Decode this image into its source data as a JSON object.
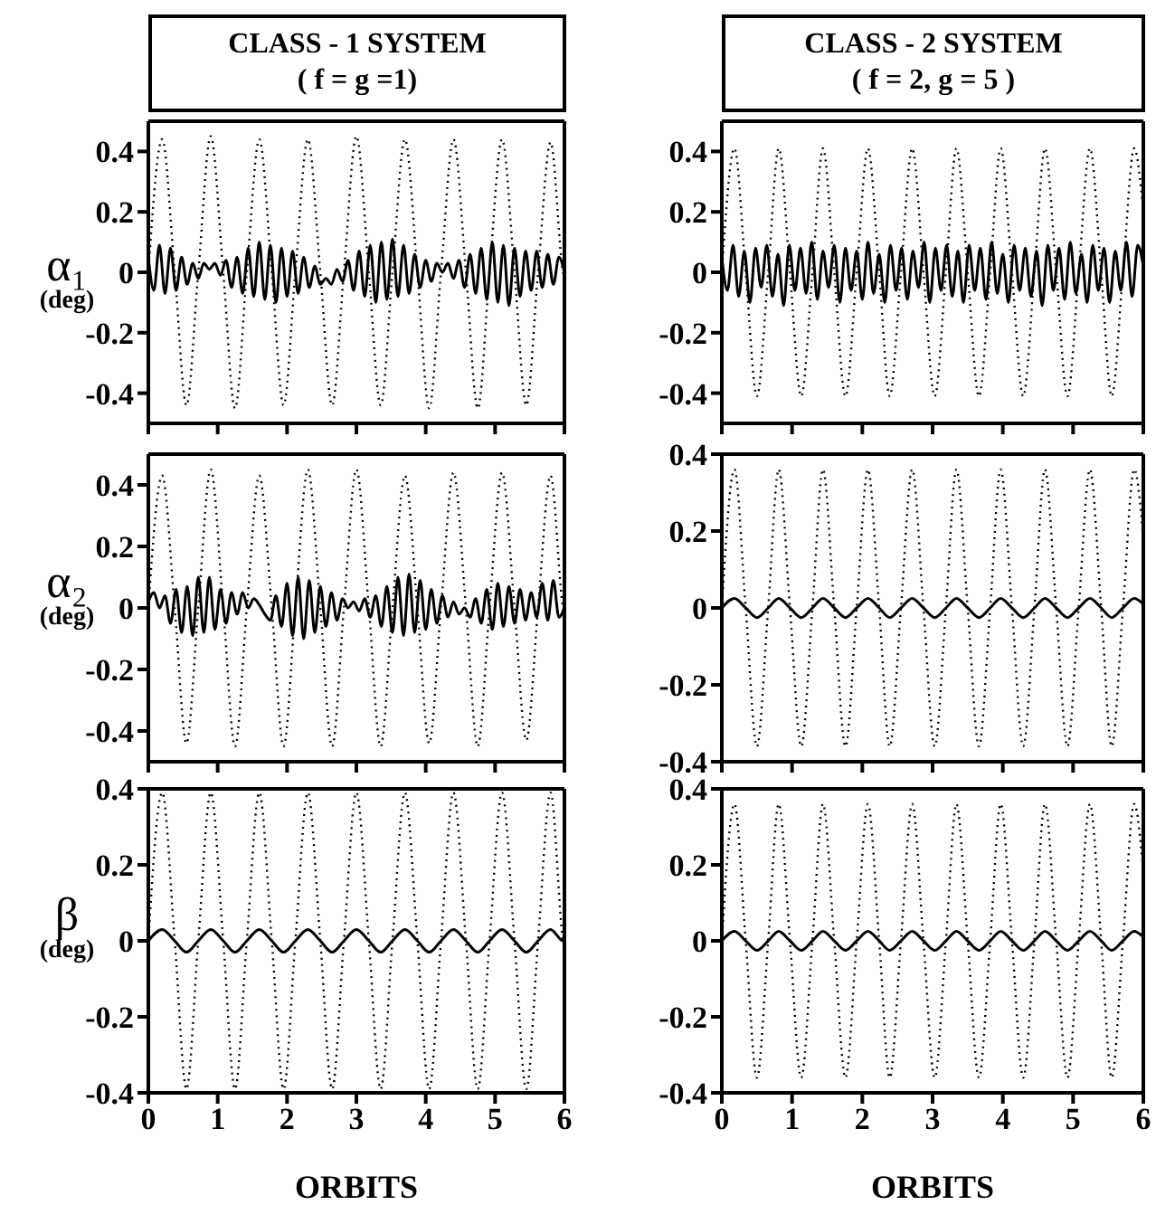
{
  "chart_data": [
    {
      "type": "line",
      "title": "CLASS - 1 SYSTEM",
      "subtitle": "( f = g =1)",
      "ylabel": "α₁ (deg)",
      "xlim": [
        0,
        6
      ],
      "xticks": [
        0,
        1,
        2,
        3,
        4,
        5,
        6
      ],
      "ylim": [
        -0.5,
        0.5
      ],
      "yticks": [
        -0.4,
        -0.2,
        0,
        0.2,
        0.4
      ],
      "tick_labels": "y",
      "series": [
        {
          "color": "#000000",
          "line_style": "dotted",
          "x": [
            0,
            0.2,
            0.38,
            0.55,
            0.72,
            0.9,
            1.08,
            1.25,
            1.42,
            1.6,
            1.78,
            1.95,
            2.12,
            2.3,
            2.48,
            2.65,
            2.82,
            3.0,
            3.18,
            3.35,
            3.52,
            3.7,
            3.88,
            4.05,
            4.22,
            4.4,
            4.58,
            4.75,
            4.92,
            5.1,
            5.28,
            5.45,
            5.62,
            5.8,
            5.98,
            6
          ],
          "values": [
            0,
            0.44,
            0,
            -0.44,
            0,
            0.45,
            0,
            -0.45,
            0,
            0.44,
            0,
            -0.44,
            0,
            0.44,
            0,
            -0.44,
            0,
            0.45,
            0,
            -0.44,
            0,
            0.44,
            0,
            -0.45,
            0,
            0.44,
            0,
            -0.45,
            0,
            0.44,
            0,
            -0.44,
            0,
            0.43,
            0,
            -0.02
          ]
        },
        {
          "color": "#000000",
          "line_style": "solid",
          "x": [
            0,
            0.08,
            0.16,
            0.24,
            0.32,
            0.4,
            0.48,
            0.56,
            0.64,
            0.72,
            0.8,
            0.88,
            0.96,
            1.04,
            1.12,
            1.2,
            1.28,
            1.36,
            1.44,
            1.52,
            1.6,
            1.68,
            1.76,
            1.84,
            1.92,
            2,
            2.08,
            2.16,
            2.24,
            2.32,
            2.4,
            2.48,
            2.56,
            2.64,
            2.72,
            2.8,
            2.88,
            2.96,
            3.04,
            3.12,
            3.2,
            3.28,
            3.36,
            3.44,
            3.52,
            3.6,
            3.68,
            3.76,
            3.84,
            3.92,
            4,
            4.08,
            4.16,
            4.24,
            4.32,
            4.4,
            4.48,
            4.56,
            4.64,
            4.72,
            4.8,
            4.88,
            4.96,
            5.04,
            5.12,
            5.2,
            5.28,
            5.36,
            5.44,
            5.52,
            5.6,
            5.68,
            5.76,
            5.84,
            5.92,
            6
          ],
          "values": [
            0.05,
            -0.06,
            0.09,
            -0.07,
            0.08,
            -0.06,
            0.05,
            -0.04,
            0.03,
            -0.02,
            0.03,
            0.01,
            0.03,
            -0.01,
            0.04,
            -0.05,
            0.05,
            -0.07,
            0.08,
            -0.08,
            0.1,
            -0.09,
            0.09,
            -0.1,
            0.08,
            -0.08,
            0.07,
            -0.07,
            0.05,
            -0.05,
            0.02,
            -0.04,
            -0.02,
            -0.04,
            0.01,
            -0.03,
            0.04,
            -0.06,
            0.07,
            -0.08,
            0.09,
            -0.1,
            0.1,
            -0.09,
            0.11,
            -0.08,
            0.09,
            -0.07,
            0.06,
            -0.05,
            0.04,
            -0.03,
            0.03,
            0,
            0.03,
            -0.02,
            0.04,
            -0.05,
            0.06,
            -0.07,
            0.08,
            -0.09,
            0.1,
            -0.1,
            0.09,
            -0.11,
            0.08,
            -0.08,
            0.07,
            -0.06,
            0.07,
            -0.05,
            0.06,
            -0.04,
            0.05,
            0
          ]
        }
      ]
    },
    {
      "type": "line",
      "title": "CLASS - 2 SYSTEM",
      "subtitle": "( f = 2, g = 5 )",
      "xlim": [
        0,
        6
      ],
      "xticks": [
        0,
        1,
        2,
        3,
        4,
        5,
        6
      ],
      "ylim": [
        -0.5,
        0.5
      ],
      "yticks": [
        -0.4,
        -0.2,
        0,
        0.2,
        0.4
      ],
      "tick_labels": "y",
      "series": [
        {
          "color": "#000000",
          "line_style": "dotted",
          "x": [
            0,
            0.18,
            0.34,
            0.5,
            0.66,
            0.81,
            0.97,
            1.13,
            1.29,
            1.44,
            1.6,
            1.76,
            1.92,
            2.08,
            2.24,
            2.39,
            2.55,
            2.71,
            2.87,
            3.03,
            3.19,
            3.34,
            3.5,
            3.66,
            3.82,
            3.97,
            4.13,
            4.29,
            4.45,
            4.6,
            4.76,
            4.92,
            5.08,
            5.24,
            5.4,
            5.55,
            5.71,
            5.87,
            6
          ],
          "values": [
            0,
            0.41,
            0,
            -0.41,
            0,
            0.41,
            0,
            -0.41,
            0,
            0.41,
            0,
            -0.41,
            0,
            0.41,
            0,
            -0.41,
            0,
            0.41,
            0,
            -0.41,
            0,
            0.41,
            0,
            -0.41,
            0,
            0.41,
            0,
            -0.41,
            0,
            0.41,
            0,
            -0.41,
            0,
            0.41,
            0,
            -0.41,
            0,
            0.41,
            0.2
          ]
        },
        {
          "color": "#000000",
          "line_style": "solid",
          "x": [
            0,
            0.08,
            0.16,
            0.24,
            0.32,
            0.4,
            0.48,
            0.56,
            0.64,
            0.72,
            0.8,
            0.88,
            0.96,
            1.04,
            1.12,
            1.2,
            1.28,
            1.36,
            1.44,
            1.52,
            1.6,
            1.68,
            1.76,
            1.84,
            1.92,
            2,
            2.08,
            2.16,
            2.24,
            2.32,
            2.4,
            2.48,
            2.56,
            2.64,
            2.72,
            2.8,
            2.88,
            2.96,
            3.04,
            3.12,
            3.2,
            3.28,
            3.36,
            3.44,
            3.52,
            3.6,
            3.68,
            3.76,
            3.84,
            3.92,
            4,
            4.08,
            4.16,
            4.24,
            4.32,
            4.4,
            4.48,
            4.56,
            4.64,
            4.72,
            4.8,
            4.88,
            4.96,
            5.04,
            5.12,
            5.2,
            5.28,
            5.36,
            5.44,
            5.52,
            5.6,
            5.68,
            5.76,
            5.84,
            5.92,
            6
          ],
          "values": [
            0.05,
            -0.06,
            0.09,
            -0.08,
            0.07,
            -0.1,
            0.08,
            -0.05,
            0.09,
            -0.08,
            0.06,
            -0.11,
            0.09,
            -0.06,
            0.08,
            -0.07,
            0.1,
            -0.09,
            0.07,
            -0.05,
            0.09,
            -0.1,
            0.08,
            -0.06,
            0.07,
            -0.09,
            0.1,
            -0.07,
            0.06,
            -0.1,
            0.09,
            -0.06,
            0.08,
            -0.09,
            0.07,
            -0.05,
            0.1,
            -0.1,
            0.08,
            -0.06,
            0.09,
            -0.08,
            0.07,
            -0.1,
            0.09,
            -0.06,
            0.08,
            -0.09,
            0.1,
            -0.07,
            0.06,
            -0.1,
            0.09,
            -0.06,
            0.08,
            -0.08,
            0.07,
            -0.11,
            0.09,
            -0.06,
            0.08,
            -0.09,
            0.1,
            -0.07,
            0.06,
            -0.1,
            0.09,
            -0.06,
            0.08,
            -0.1,
            0.07,
            -0.06,
            0.1,
            -0.08,
            0.09,
            0.02
          ]
        }
      ]
    },
    {
      "type": "line",
      "ylabel": "α₂ (deg)",
      "xlim": [
        0,
        6
      ],
      "xticks": [
        0,
        1,
        2,
        3,
        4,
        5,
        6
      ],
      "ylim": [
        -0.5,
        0.5
      ],
      "yticks": [
        -0.4,
        -0.2,
        0,
        0.2,
        0.4
      ],
      "tick_labels": "y",
      "series": [
        {
          "color": "#000000",
          "line_style": "dotted",
          "x": [
            0,
            0.2,
            0.38,
            0.55,
            0.72,
            0.9,
            1.08,
            1.25,
            1.42,
            1.6,
            1.78,
            1.95,
            2.12,
            2.3,
            2.48,
            2.65,
            2.82,
            3.0,
            3.18,
            3.35,
            3.52,
            3.7,
            3.88,
            4.05,
            4.22,
            4.4,
            4.58,
            4.75,
            4.92,
            5.1,
            5.28,
            5.45,
            5.62,
            5.8,
            5.98,
            6
          ],
          "values": [
            0,
            0.43,
            0,
            -0.44,
            0,
            0.45,
            0,
            -0.45,
            0,
            0.43,
            0,
            -0.45,
            0,
            0.45,
            0,
            -0.45,
            0,
            0.45,
            0,
            -0.45,
            0,
            0.43,
            0,
            -0.44,
            0,
            0.44,
            0,
            -0.45,
            0,
            0.44,
            0,
            -0.43,
            0,
            0.43,
            0,
            -0.02
          ]
        },
        {
          "color": "#000000",
          "line_style": "solid",
          "x": [
            0,
            0.08,
            0.16,
            0.24,
            0.32,
            0.4,
            0.48,
            0.56,
            0.64,
            0.72,
            0.8,
            0.88,
            0.96,
            1.04,
            1.12,
            1.2,
            1.28,
            1.36,
            1.44,
            1.52,
            1.6,
            1.68,
            1.76,
            1.84,
            1.92,
            2,
            2.08,
            2.16,
            2.24,
            2.32,
            2.4,
            2.48,
            2.56,
            2.64,
            2.72,
            2.8,
            2.88,
            2.96,
            3.04,
            3.12,
            3.2,
            3.28,
            3.36,
            3.44,
            3.52,
            3.6,
            3.68,
            3.76,
            3.84,
            3.92,
            4,
            4.08,
            4.16,
            4.24,
            4.32,
            4.4,
            4.48,
            4.56,
            4.64,
            4.72,
            4.8,
            4.88,
            4.96,
            5.04,
            5.12,
            5.2,
            5.28,
            5.36,
            5.44,
            5.52,
            5.6,
            5.68,
            5.76,
            5.84,
            5.92,
            6
          ],
          "values": [
            0.02,
            0.05,
            0,
            0.04,
            -0.05,
            0.06,
            -0.08,
            0.07,
            -0.09,
            0.1,
            -0.08,
            0.1,
            -0.07,
            0.06,
            -0.05,
            0.05,
            -0.02,
            0.05,
            0,
            0.03,
            0.01,
            -0.02,
            -0.04,
            0.04,
            -0.06,
            0.08,
            -0.09,
            0.1,
            -0.1,
            0.09,
            -0.08,
            0.07,
            -0.06,
            0.05,
            -0.04,
            0.03,
            0,
            0.02,
            -0.01,
            0.03,
            -0.03,
            0.04,
            -0.06,
            0.07,
            -0.08,
            0.1,
            -0.09,
            0.11,
            -0.08,
            0.09,
            -0.07,
            0.06,
            -0.05,
            0.04,
            -0.03,
            0.02,
            -0.02,
            0,
            -0.03,
            0.03,
            -0.05,
            0.06,
            -0.07,
            0.08,
            -0.06,
            0.07,
            -0.05,
            0.06,
            -0.04,
            0.05,
            -0.03,
            0.08,
            -0.04,
            0.09,
            -0.03,
            0
          ]
        }
      ]
    },
    {
      "type": "line",
      "xlim": [
        0,
        6
      ],
      "xticks": [
        0,
        1,
        2,
        3,
        4,
        5,
        6
      ],
      "ylim": [
        -0.4,
        0.4
      ],
      "yticks": [
        -0.4,
        -0.2,
        0,
        0.2,
        0.4
      ],
      "tick_labels": "y",
      "series": [
        {
          "color": "#000000",
          "line_style": "dotted",
          "x": [
            0,
            0.18,
            0.34,
            0.5,
            0.66,
            0.81,
            0.97,
            1.13,
            1.29,
            1.44,
            1.6,
            1.76,
            1.92,
            2.08,
            2.24,
            2.39,
            2.55,
            2.71,
            2.87,
            3.03,
            3.19,
            3.34,
            3.5,
            3.66,
            3.82,
            3.97,
            4.13,
            4.29,
            4.45,
            4.6,
            4.76,
            4.92,
            5.08,
            5.24,
            5.4,
            5.55,
            5.71,
            5.87,
            6
          ],
          "values": [
            0,
            0.36,
            0,
            -0.36,
            0,
            0.36,
            0,
            -0.36,
            0,
            0.36,
            0,
            -0.36,
            0,
            0.36,
            0,
            -0.36,
            0,
            0.36,
            0,
            -0.36,
            0,
            0.36,
            0,
            -0.36,
            0,
            0.36,
            0,
            -0.36,
            0,
            0.36,
            0,
            -0.36,
            0,
            0.36,
            0,
            -0.36,
            0,
            0.36,
            0.18
          ]
        },
        {
          "color": "#000000",
          "line_style": "solid",
          "x": [
            0,
            0.18,
            0.34,
            0.5,
            0.66,
            0.81,
            0.97,
            1.13,
            1.29,
            1.44,
            1.6,
            1.76,
            1.92,
            2.08,
            2.24,
            2.39,
            2.55,
            2.71,
            2.87,
            3.03,
            3.19,
            3.34,
            3.5,
            3.66,
            3.82,
            3.97,
            4.13,
            4.29,
            4.45,
            4.6,
            4.76,
            4.92,
            5.08,
            5.24,
            5.4,
            5.55,
            5.71,
            5.87,
            6
          ],
          "values": [
            0,
            0.025,
            0,
            -0.025,
            0,
            0.025,
            0,
            -0.025,
            0,
            0.025,
            0,
            -0.025,
            0,
            0.025,
            0,
            -0.025,
            0,
            0.025,
            0,
            -0.025,
            0,
            0.025,
            0,
            -0.025,
            0,
            0.025,
            0,
            -0.025,
            0,
            0.025,
            0,
            -0.025,
            0,
            0.025,
            0,
            -0.025,
            0,
            0.025,
            0.01
          ]
        }
      ]
    },
    {
      "type": "line",
      "ylabel": "β (deg)",
      "xlabel": "ORBITS",
      "xlim": [
        0,
        6
      ],
      "xticks": [
        0,
        1,
        2,
        3,
        4,
        5,
        6
      ],
      "ylim": [
        -0.4,
        0.4
      ],
      "yticks": [
        -0.4,
        -0.2,
        0,
        0.2,
        0.4
      ],
      "series": [
        {
          "color": "#000000",
          "line_style": "dotted",
          "x": [
            0,
            0.2,
            0.38,
            0.55,
            0.72,
            0.9,
            1.08,
            1.25,
            1.42,
            1.6,
            1.78,
            1.95,
            2.12,
            2.3,
            2.48,
            2.65,
            2.82,
            3.0,
            3.18,
            3.35,
            3.52,
            3.7,
            3.88,
            4.05,
            4.22,
            4.4,
            4.58,
            4.75,
            4.92,
            5.1,
            5.28,
            5.45,
            5.62,
            5.8,
            5.98,
            6
          ],
          "values": [
            0,
            0.39,
            0,
            -0.39,
            0,
            0.39,
            0,
            -0.39,
            0,
            0.39,
            0,
            -0.39,
            0,
            0.39,
            0,
            -0.39,
            0,
            0.39,
            0,
            -0.39,
            0,
            0.39,
            0,
            -0.39,
            0,
            0.39,
            0,
            -0.39,
            0,
            0.39,
            0,
            -0.39,
            0,
            0.39,
            0,
            -0.02
          ]
        },
        {
          "color": "#000000",
          "line_style": "solid",
          "x": [
            0,
            0.2,
            0.38,
            0.55,
            0.72,
            0.9,
            1.08,
            1.25,
            1.42,
            1.6,
            1.78,
            1.95,
            2.12,
            2.3,
            2.48,
            2.65,
            2.82,
            3.0,
            3.18,
            3.35,
            3.52,
            3.7,
            3.88,
            4.05,
            4.22,
            4.4,
            4.58,
            4.75,
            4.92,
            5.1,
            5.28,
            5.45,
            5.62,
            5.8,
            5.98,
            6
          ],
          "values": [
            0,
            0.03,
            0,
            -0.03,
            0,
            0.03,
            0,
            -0.03,
            0,
            0.03,
            0,
            -0.03,
            0,
            0.03,
            0,
            -0.03,
            0,
            0.03,
            0,
            -0.03,
            0,
            0.03,
            0,
            -0.03,
            0,
            0.03,
            0,
            -0.03,
            0,
            0.03,
            0,
            -0.03,
            0,
            0.03,
            0,
            0
          ]
        }
      ]
    },
    {
      "type": "line",
      "xlabel": "ORBITS",
      "xlim": [
        0,
        6
      ],
      "xticks": [
        0,
        1,
        2,
        3,
        4,
        5,
        6
      ],
      "ylim": [
        -0.4,
        0.4
      ],
      "yticks": [
        -0.4,
        -0.2,
        0,
        0.2,
        0.4
      ],
      "series": [
        {
          "color": "#000000",
          "line_style": "dotted",
          "x": [
            0,
            0.18,
            0.34,
            0.5,
            0.66,
            0.81,
            0.97,
            1.13,
            1.29,
            1.44,
            1.6,
            1.76,
            1.92,
            2.08,
            2.24,
            2.39,
            2.55,
            2.71,
            2.87,
            3.03,
            3.19,
            3.34,
            3.5,
            3.66,
            3.82,
            3.97,
            4.13,
            4.29,
            4.45,
            4.6,
            4.76,
            4.92,
            5.08,
            5.24,
            5.4,
            5.55,
            5.71,
            5.87,
            6
          ],
          "values": [
            0,
            0.36,
            0,
            -0.36,
            0,
            0.36,
            0,
            -0.36,
            0,
            0.36,
            0,
            -0.36,
            0,
            0.36,
            0,
            -0.36,
            0,
            0.36,
            0,
            -0.36,
            0,
            0.36,
            0,
            -0.36,
            0,
            0.36,
            0,
            -0.36,
            0,
            0.36,
            0,
            -0.36,
            0,
            0.36,
            0,
            -0.36,
            0,
            0.36,
            0.18
          ]
        },
        {
          "color": "#000000",
          "line_style": "solid",
          "x": [
            0,
            0.18,
            0.34,
            0.5,
            0.66,
            0.81,
            0.97,
            1.13,
            1.29,
            1.44,
            1.6,
            1.76,
            1.92,
            2.08,
            2.24,
            2.39,
            2.55,
            2.71,
            2.87,
            3.03,
            3.19,
            3.34,
            3.5,
            3.66,
            3.82,
            3.97,
            4.13,
            4.29,
            4.45,
            4.6,
            4.76,
            4.92,
            5.08,
            5.24,
            5.4,
            5.55,
            5.71,
            5.87,
            6
          ],
          "values": [
            0,
            0.025,
            0,
            -0.025,
            0,
            0.025,
            0,
            -0.025,
            0,
            0.025,
            0,
            -0.025,
            0,
            0.025,
            0,
            -0.025,
            0,
            0.025,
            0,
            -0.025,
            0,
            0.025,
            0,
            -0.025,
            0,
            0.025,
            0,
            -0.025,
            0,
            0.025,
            0,
            -0.025,
            0,
            0.025,
            0,
            -0.025,
            0,
            0.025,
            0.01
          ]
        }
      ]
    }
  ]
}
